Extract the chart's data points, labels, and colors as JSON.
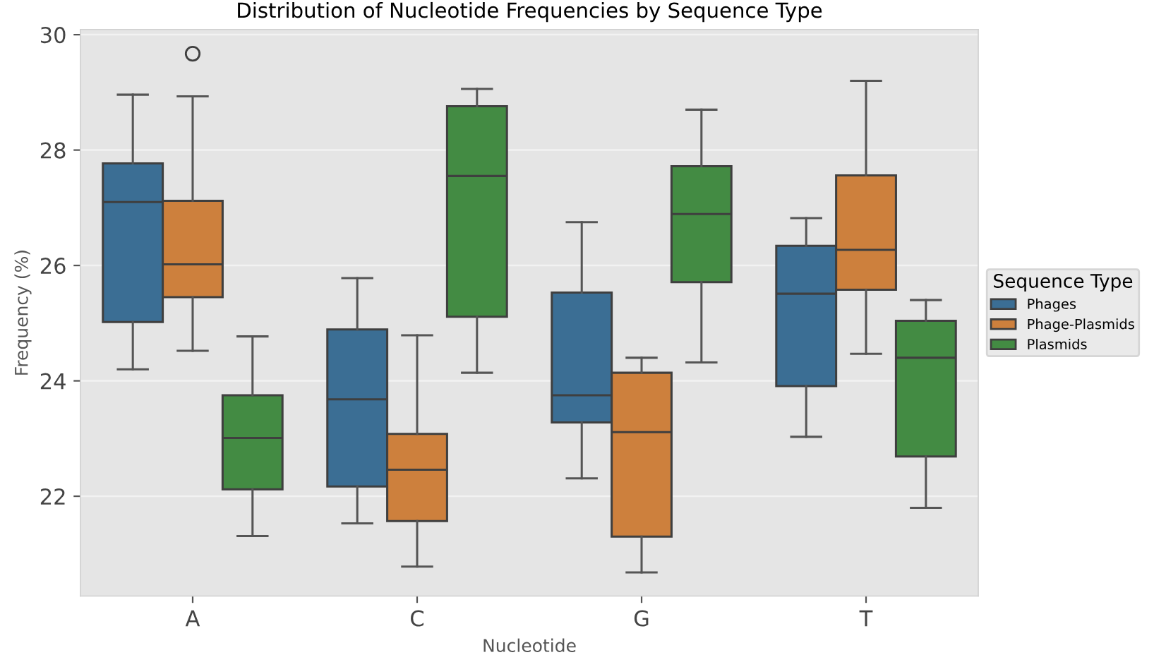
{
  "chart_data": {
    "type": "box",
    "title": "Distribution of Nucleotide Frequencies by Sequence Type",
    "xlabel": "Nucleotide",
    "ylabel": "Frequency (%)",
    "legend_title": "Sequence Type",
    "categories": [
      "A",
      "C",
      "G",
      "T"
    ],
    "series": [
      {
        "name": "Phages",
        "color": "#3b6e94",
        "boxes": [
          {
            "low": 24.2,
            "q1": 25.02,
            "median": 27.1,
            "q3": 27.77,
            "high": 28.96
          },
          {
            "low": 21.53,
            "q1": 22.17,
            "median": 23.68,
            "q3": 24.89,
            "high": 25.78
          },
          {
            "low": 22.31,
            "q1": 23.28,
            "median": 23.75,
            "q3": 25.53,
            "high": 26.75
          },
          {
            "low": 23.03,
            "q1": 23.91,
            "median": 25.51,
            "q3": 26.34,
            "high": 26.82
          }
        ]
      },
      {
        "name": "Phage-Plasmids",
        "color": "#cd803d",
        "boxes": [
          {
            "low": 24.52,
            "q1": 25.45,
            "median": 26.02,
            "q3": 27.12,
            "high": 28.93,
            "outliers": [
              29.67
            ]
          },
          {
            "low": 20.78,
            "q1": 21.57,
            "median": 22.46,
            "q3": 23.08,
            "high": 24.79
          },
          {
            "low": 20.68,
            "q1": 21.3,
            "median": 23.11,
            "q3": 24.14,
            "high": 24.4
          },
          {
            "low": 24.47,
            "q1": 25.58,
            "median": 26.27,
            "q3": 27.56,
            "high": 29.2
          }
        ]
      },
      {
        "name": "Plasmids",
        "color": "#438b43",
        "boxes": [
          {
            "low": 21.31,
            "q1": 22.12,
            "median": 23.01,
            "q3": 23.75,
            "high": 24.77
          },
          {
            "low": 24.14,
            "q1": 25.11,
            "median": 27.55,
            "q3": 28.76,
            "high": 29.06
          },
          {
            "low": 24.32,
            "q1": 25.71,
            "median": 26.89,
            "q3": 27.72,
            "high": 28.7
          },
          {
            "low": 21.8,
            "q1": 22.69,
            "median": 24.4,
            "q3": 25.04,
            "high": 25.4
          }
        ]
      }
    ],
    "ylim": [
      20.27,
      30.09
    ],
    "yticks": [
      22,
      24,
      26,
      28,
      30
    ],
    "grid": "y",
    "legend": "right"
  }
}
